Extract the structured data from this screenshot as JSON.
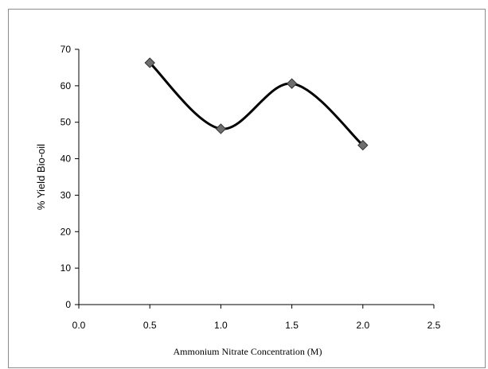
{
  "chart_data": {
    "type": "line",
    "title": "",
    "xlabel": "Ammonium Nitrate Concentration (M)",
    "ylabel": "% Yield Bio-oil",
    "xlim": [
      0.0,
      2.5
    ],
    "ylim": [
      0,
      70
    ],
    "x_ticks": [
      "0.0",
      "0.5",
      "1.0",
      "1.5",
      "2.0",
      "2.5"
    ],
    "y_ticks": [
      "0",
      "10",
      "20",
      "30",
      "40",
      "50",
      "60",
      "70"
    ],
    "grid": false,
    "legend": "none",
    "smooth": true,
    "series": [
      {
        "x": [
          0.5,
          1.0,
          1.5,
          2.0
        ],
        "y": [
          66.3,
          48.2,
          60.6,
          43.7
        ],
        "marker": "diamond",
        "marker_color": "#6e6e6e",
        "line_color": "#000000"
      }
    ]
  }
}
